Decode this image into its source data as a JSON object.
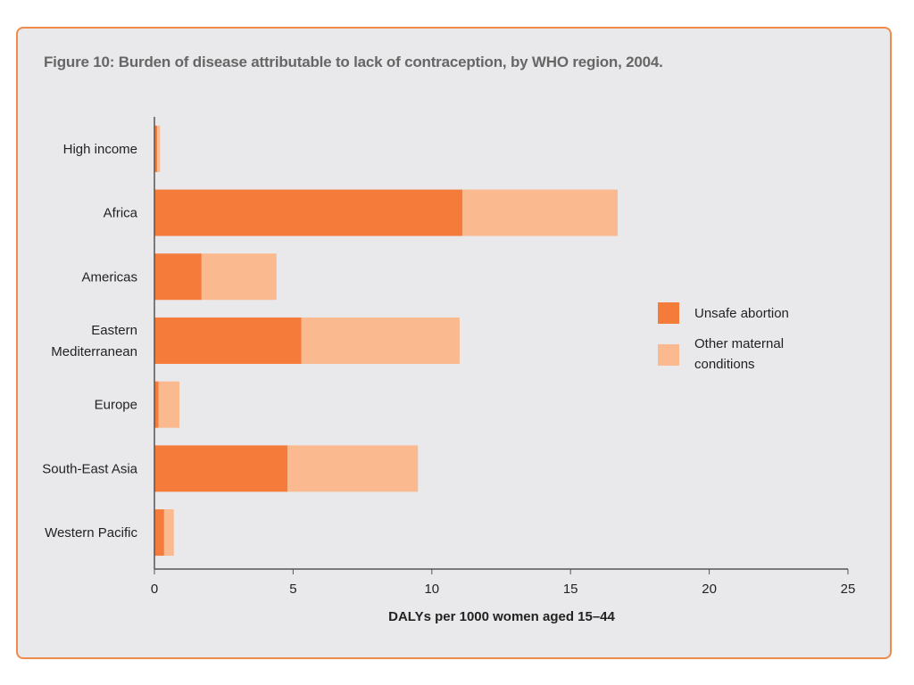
{
  "chart_data": {
    "type": "bar",
    "orientation": "horizontal",
    "stacked": true,
    "title": "Figure 10: Burden of disease attributable to lack of contraception, by WHO region, 2004.",
    "xlabel": "DALYs per 1000 women aged 15–44",
    "ylabel": "",
    "xlim": [
      0,
      25
    ],
    "xticks": [
      0,
      5,
      10,
      15,
      20,
      25
    ],
    "grid": false,
    "legend_position": "right",
    "categories": [
      [
        "High income"
      ],
      [
        "Africa"
      ],
      [
        "Americas"
      ],
      [
        "Eastern",
        "Mediterranean"
      ],
      [
        "Europe"
      ],
      [
        "South-East Asia"
      ],
      [
        "Western Pacific"
      ]
    ],
    "series": [
      {
        "name": [
          "Unsafe abortion"
        ],
        "color": "#f47b3a",
        "values": [
          0.1,
          11.1,
          1.7,
          5.3,
          0.15,
          4.8,
          0.35
        ]
      },
      {
        "name": [
          "Other maternal",
          "conditions"
        ],
        "color": "#fab98e",
        "values": [
          0.1,
          5.6,
          2.7,
          5.7,
          0.75,
          4.7,
          0.35
        ]
      }
    ]
  }
}
